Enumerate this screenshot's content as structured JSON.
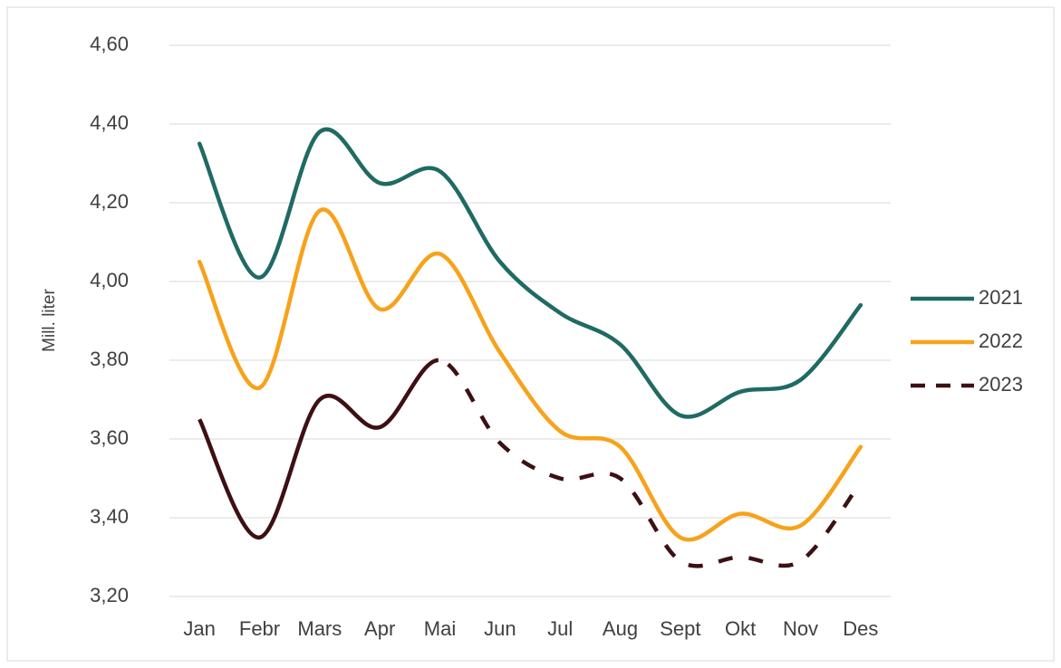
{
  "chart_data": {
    "type": "line",
    "y_label": "Mill. liter",
    "categories": [
      "Jan",
      "Febr",
      "Mars",
      "Apr",
      "Mai",
      "Jun",
      "Jul",
      "Aug",
      "Sept",
      "Okt",
      "Nov",
      "Des"
    ],
    "series": [
      {
        "name": "2021",
        "color": "#1f6b63",
        "values": [
          4.35,
          4.01,
          4.38,
          4.25,
          4.28,
          4.05,
          3.92,
          3.84,
          3.66,
          3.72,
          3.75,
          3.94
        ]
      },
      {
        "name": "2022",
        "color": "#f7a21b",
        "values": [
          4.05,
          3.73,
          4.18,
          3.93,
          4.07,
          3.82,
          3.62,
          3.58,
          3.35,
          3.41,
          3.38,
          3.58
        ]
      },
      {
        "name": "2023",
        "color": "#3d1014",
        "dashed_after": "Mai",
        "values": [
          3.65,
          3.35,
          3.7,
          3.63,
          3.8,
          3.59,
          3.5,
          3.5,
          3.29,
          3.3,
          3.29,
          3.49
        ]
      }
    ],
    "ylim": [
      3.2,
      4.6
    ],
    "yticks": [
      {
        "value": 3.2,
        "label": "3,20"
      },
      {
        "value": 3.4,
        "label": "3,40"
      },
      {
        "value": 3.6,
        "label": "3,60"
      },
      {
        "value": 3.8,
        "label": "3,80"
      },
      {
        "value": 4.0,
        "label": "4,00"
      },
      {
        "value": 4.2,
        "label": "4,20"
      },
      {
        "value": 4.4,
        "label": "4,40"
      },
      {
        "value": 4.6,
        "label": "4,60"
      }
    ],
    "grid": true,
    "smooth": true,
    "legend": "right"
  }
}
